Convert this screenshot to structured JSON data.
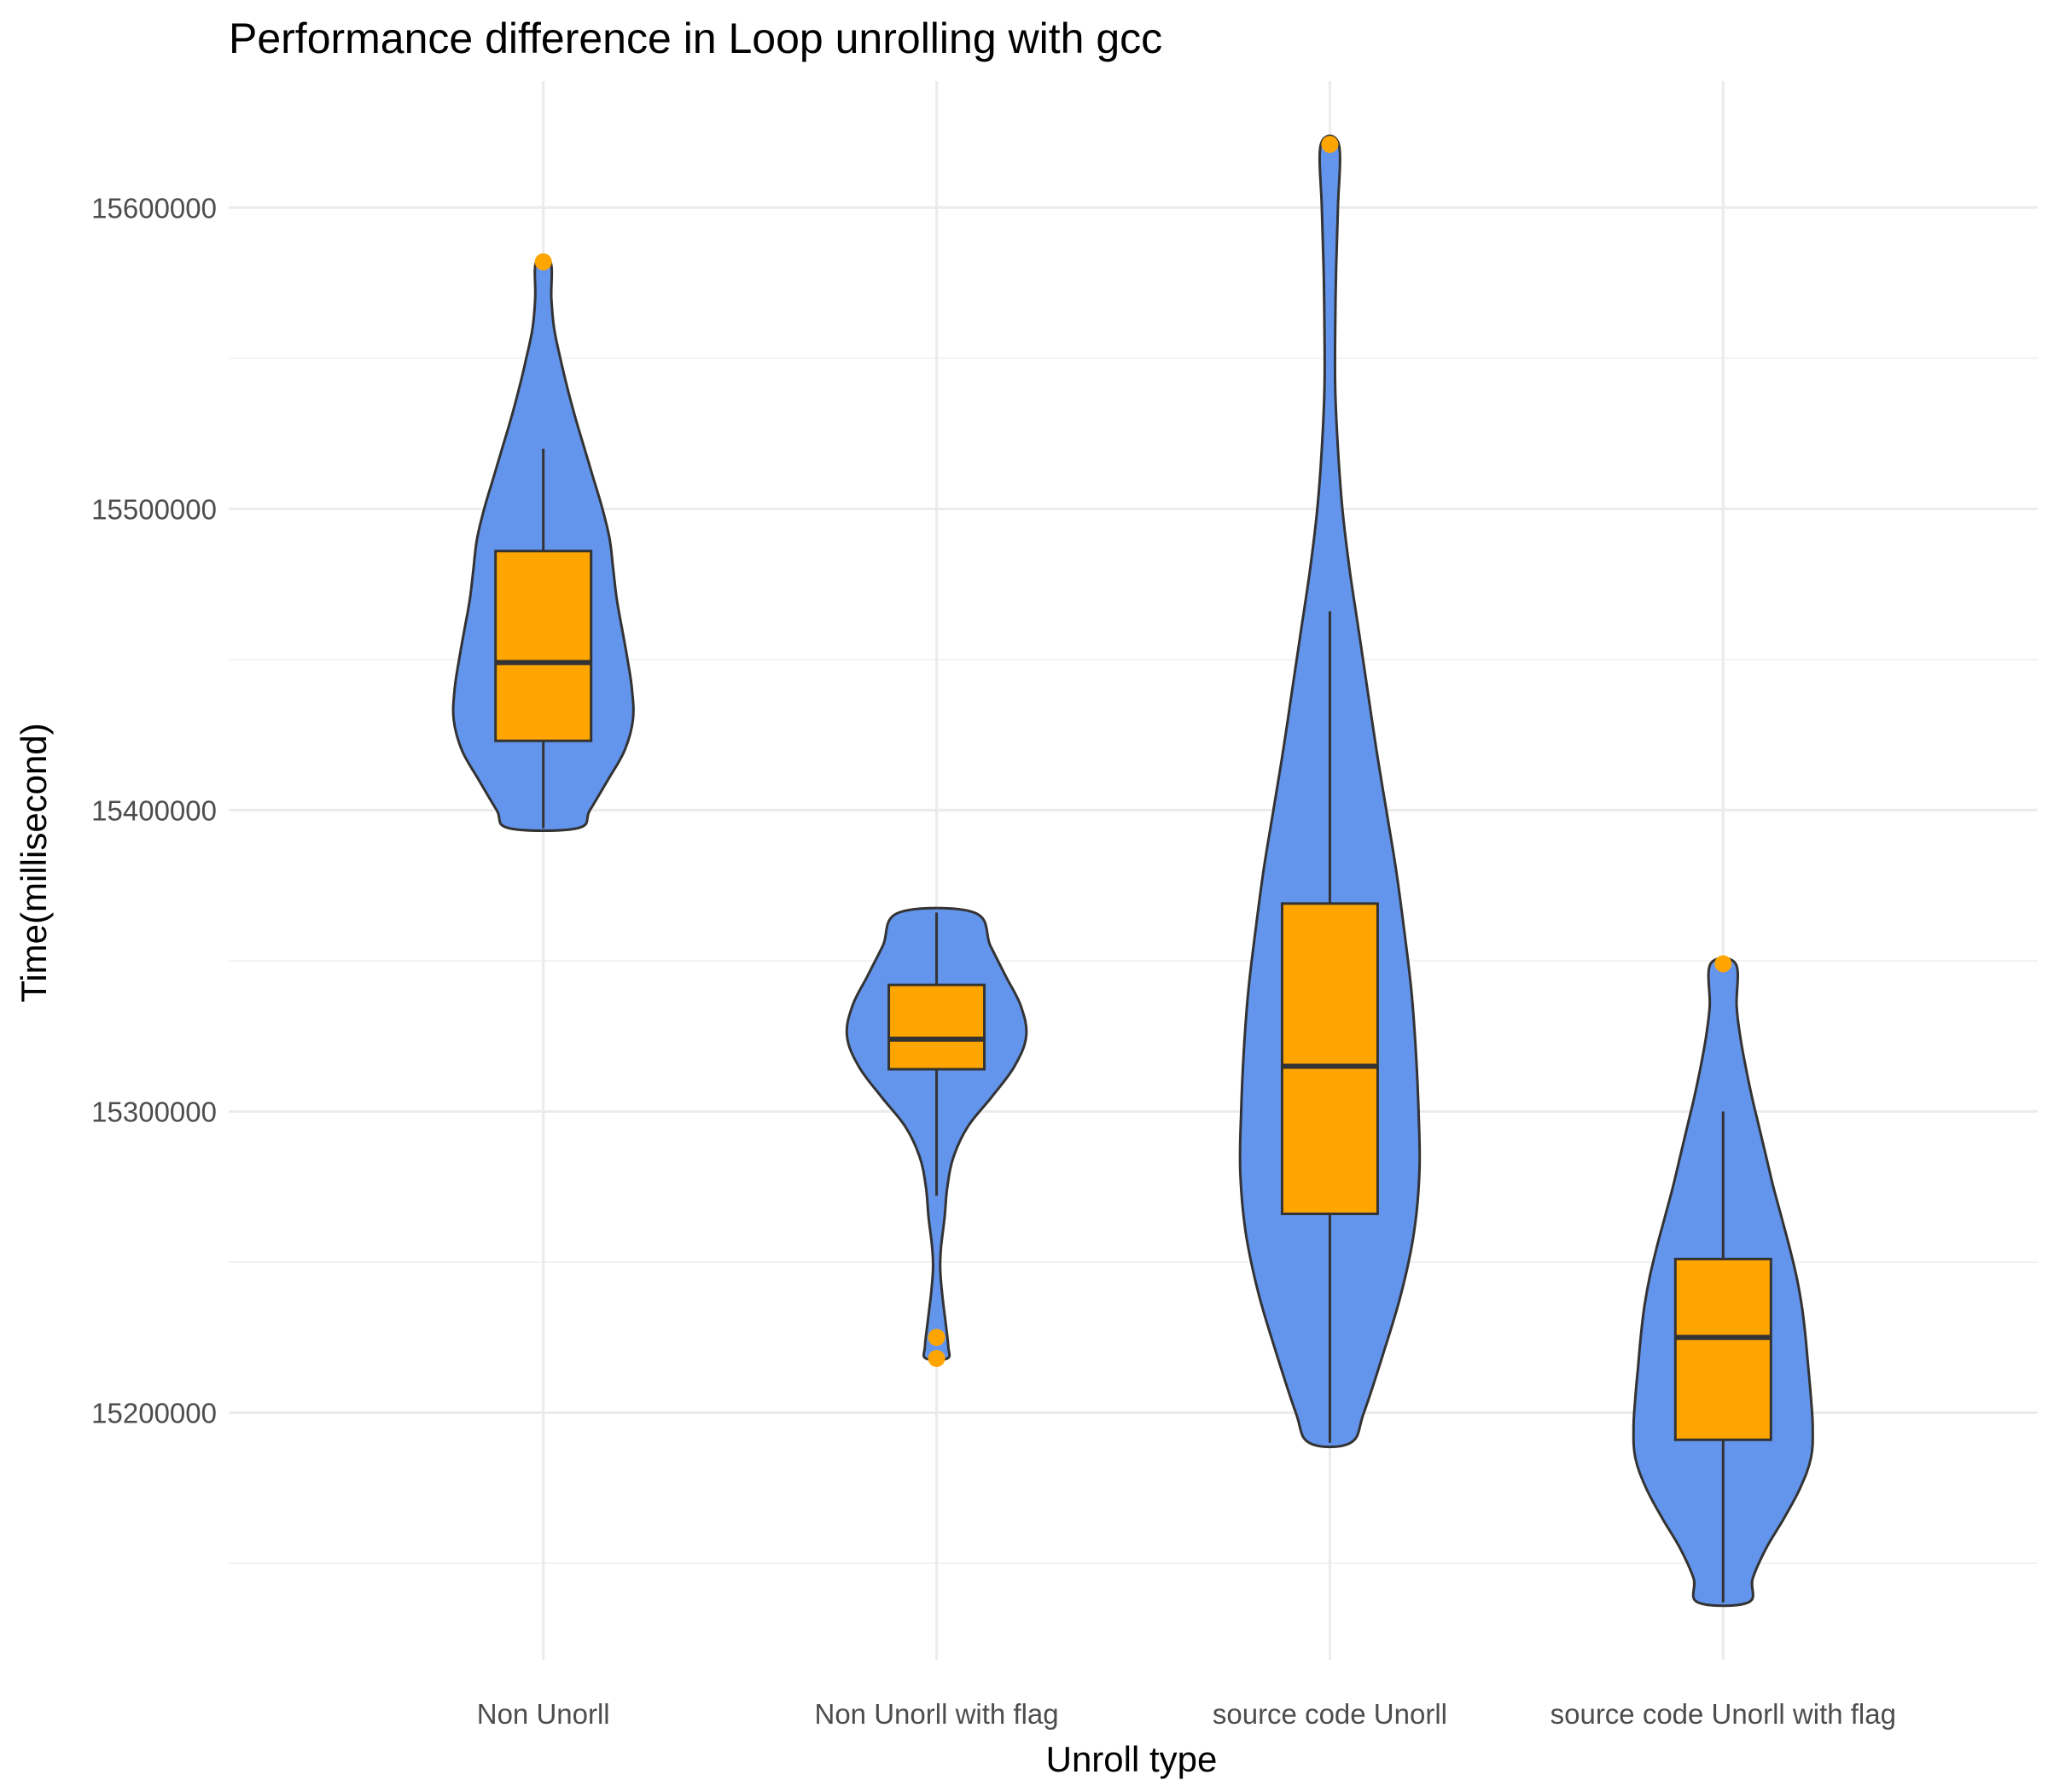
{
  "chart_data": {
    "type": "violin",
    "title": "Performance difference in Loop unrolling with gcc",
    "xlabel": "Unroll type",
    "ylabel": "Time(millisecond)",
    "ylim": [
      15118000,
      15642000
    ],
    "yticks": [
      15200000,
      15300000,
      15400000,
      15500000,
      15600000
    ],
    "yticklabels": [
      "15200000",
      "15300000",
      "15400000",
      "15500000",
      "15600000"
    ],
    "grid": true,
    "colors": {
      "violin_fill": "#6495ED",
      "box_fill": "#FFA500",
      "outlier": "#FFA500",
      "outline": "#333333"
    },
    "categories": [
      "Non Unorll",
      "Non Unorll with flag",
      "source code Unorll",
      "source code Unorll with flag"
    ],
    "series": [
      {
        "category": "Non Unorll",
        "box": {
          "whisker_low": 15394000,
          "q1": 15423000,
          "median": 15449000,
          "q3": 15486000,
          "whisker_high": 15520000
        },
        "outliers": [
          15582000
        ],
        "violin": {
          "y": [
            15394000,
            15400000,
            15410000,
            15420000,
            15430000,
            15440000,
            15450000,
            15460000,
            15470000,
            15480000,
            15490000,
            15500000,
            15510000,
            15520000,
            15530000,
            15540000,
            15550000,
            15560000,
            15570000,
            15582000
          ],
          "width": [
            0.38,
            0.52,
            0.72,
            0.91,
            1.0,
            0.99,
            0.94,
            0.88,
            0.82,
            0.78,
            0.74,
            0.66,
            0.56,
            0.46,
            0.36,
            0.27,
            0.19,
            0.12,
            0.09,
            0.08
          ]
        }
      },
      {
        "category": "Non Unorll with flag",
        "box": {
          "whisker_low": 15272000,
          "q1": 15314000,
          "median": 15324000,
          "q3": 15342000,
          "whisker_high": 15366000
        },
        "outliers": [
          15225000,
          15218000
        ],
        "violin": {
          "y": [
            15218000,
            15222000,
            15230000,
            15240000,
            15248000,
            15255000,
            15265000,
            15275000,
            15285000,
            15295000,
            15305000,
            15315000,
            15325000,
            15335000,
            15345000,
            15355000,
            15366000
          ],
          "width": [
            0.12,
            0.13,
            0.1,
            0.06,
            0.04,
            0.05,
            0.09,
            0.12,
            0.19,
            0.35,
            0.62,
            0.87,
            1.0,
            0.94,
            0.77,
            0.6,
            0.42
          ]
        }
      },
      {
        "category": "source code Unorll",
        "box": {
          "whisker_low": 15190000,
          "q1": 15266000,
          "median": 15315000,
          "q3": 15369000,
          "whisker_high": 15466000
        },
        "outliers": [
          15621000
        ],
        "violin": {
          "y": [
            15190000,
            15200000,
            15220000,
            15240000,
            15260000,
            15280000,
            15300000,
            15320000,
            15340000,
            15360000,
            15380000,
            15400000,
            15420000,
            15440000,
            15460000,
            15480000,
            15500000,
            15520000,
            15540000,
            15560000,
            15580000,
            15600000,
            15621000
          ],
          "width": [
            0.23,
            0.38,
            0.6,
            0.8,
            0.94,
            1.0,
            0.99,
            0.96,
            0.91,
            0.83,
            0.74,
            0.63,
            0.52,
            0.42,
            0.32,
            0.22,
            0.14,
            0.09,
            0.06,
            0.06,
            0.07,
            0.09,
            0.1
          ]
        }
      },
      {
        "category": "source code Unorll with flag",
        "box": {
          "whisker_low": 15137000,
          "q1": 15191000,
          "median": 15225000,
          "q3": 15251000,
          "whisker_high": 15300000
        },
        "outliers": [
          15349000
        ],
        "violin": {
          "y": [
            15137000,
            15145000,
            15155000,
            15165000,
            15175000,
            15185000,
            15195000,
            15205000,
            15215000,
            15225000,
            15235000,
            15245000,
            15255000,
            15265000,
            15275000,
            15285000,
            15295000,
            15305000,
            15315000,
            15325000,
            15335000,
            15349000
          ],
          "width": [
            0.28,
            0.33,
            0.48,
            0.68,
            0.86,
            0.98,
            1.0,
            0.98,
            0.95,
            0.92,
            0.88,
            0.82,
            0.74,
            0.65,
            0.56,
            0.48,
            0.4,
            0.32,
            0.25,
            0.19,
            0.15,
            0.14
          ]
        }
      }
    ]
  }
}
